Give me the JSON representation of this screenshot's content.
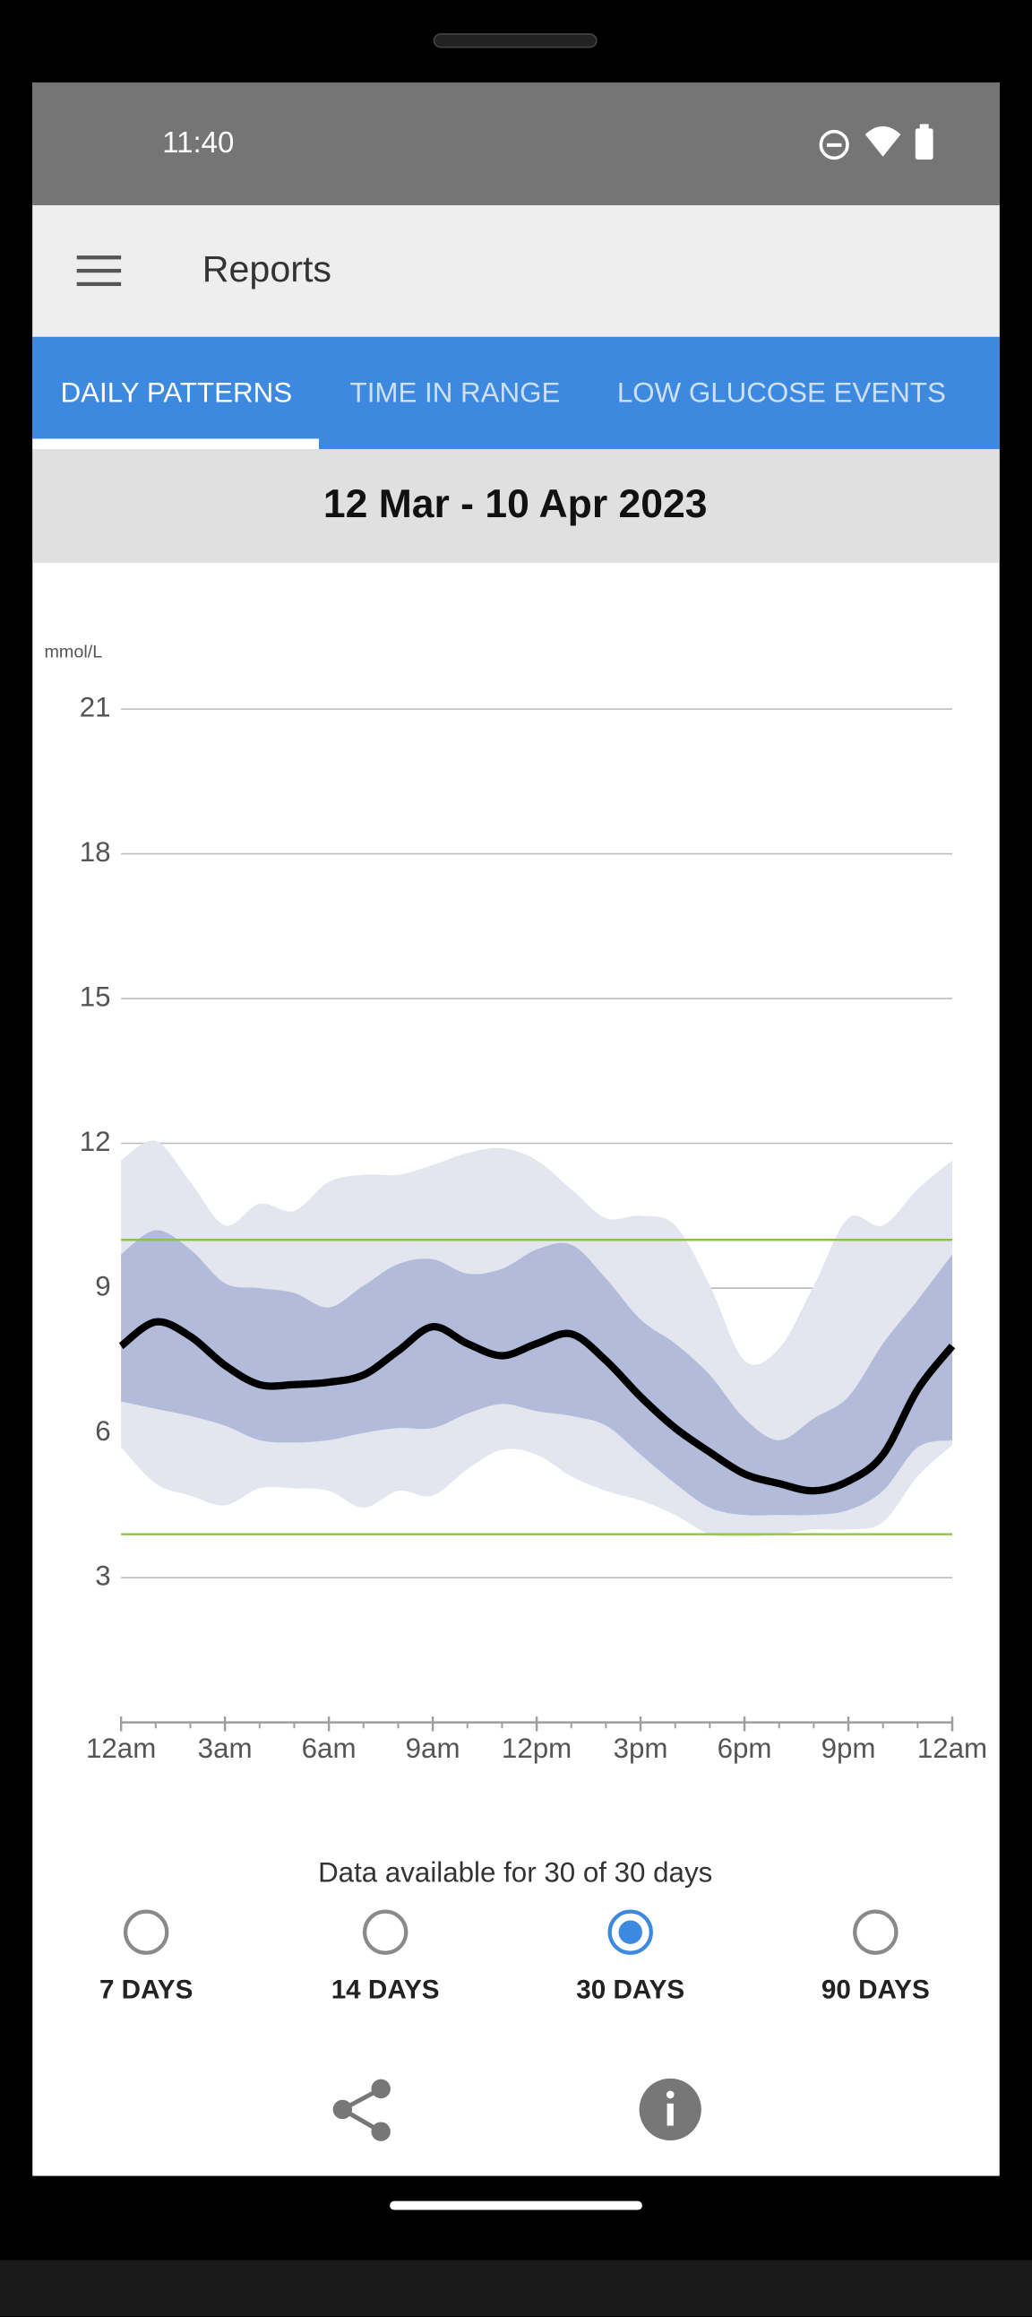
{
  "status_bar": {
    "time": "11:40"
  },
  "app_bar": {
    "title": "Reports"
  },
  "tabs": [
    {
      "label": "DAILY PATTERNS",
      "selected": true
    },
    {
      "label": "TIME IN RANGE",
      "selected": false
    },
    {
      "label": "LOW GLUCOSE EVENTS",
      "selected": false
    }
  ],
  "date_range": "12 Mar - 10 Apr 2023",
  "chart_data": {
    "type": "line",
    "y_label": "mmol/L",
    "x": [
      0,
      1,
      2,
      3,
      4,
      5,
      6,
      7,
      8,
      9,
      10,
      11,
      12,
      13,
      14,
      15,
      16,
      17,
      18,
      19,
      20,
      21,
      22,
      23,
      24
    ],
    "xlim": [
      0,
      24
    ],
    "xticks": [
      {
        "value": 0,
        "label": "12am"
      },
      {
        "value": 3,
        "label": "3am"
      },
      {
        "value": 6,
        "label": "6am"
      },
      {
        "value": 9,
        "label": "9am"
      },
      {
        "value": 12,
        "label": "12pm"
      },
      {
        "value": 15,
        "label": "3pm"
      },
      {
        "value": 18,
        "label": "6pm"
      },
      {
        "value": 21,
        "label": "9pm"
      },
      {
        "value": 24,
        "label": "12am"
      }
    ],
    "ylim": [
      0,
      21
    ],
    "yticks": [
      3,
      6,
      9,
      12,
      15,
      18,
      21
    ],
    "grid": true,
    "bands": [
      {
        "color": "#e3e6ef",
        "upper": [
          11.65,
          12.05,
          11.2,
          10.3,
          10.75,
          10.6,
          11.2,
          11.35,
          11.35,
          11.55,
          11.8,
          11.9,
          11.65,
          11.05,
          10.45,
          10.5,
          10.3,
          9.05,
          7.5,
          7.75,
          9.05,
          10.45,
          10.3,
          11.05,
          11.65
        ],
        "lower": [
          5.7,
          4.95,
          4.7,
          4.5,
          4.85,
          4.85,
          4.8,
          4.45,
          4.8,
          4.7,
          5.25,
          5.65,
          5.55,
          5.1,
          4.8,
          4.6,
          4.3,
          3.9,
          3.85,
          3.9,
          4.0,
          4.0,
          4.15,
          5.1,
          5.75
        ]
      },
      {
        "color": "#b2bcda",
        "upper": [
          9.7,
          10.2,
          9.8,
          9.1,
          9.0,
          8.9,
          8.6,
          9.05,
          9.5,
          9.6,
          9.3,
          9.4,
          9.8,
          9.9,
          9.2,
          8.35,
          7.85,
          7.2,
          6.3,
          5.85,
          6.3,
          6.75,
          7.85,
          8.75,
          9.7
        ],
        "lower": [
          6.65,
          6.5,
          6.35,
          6.15,
          5.85,
          5.8,
          5.85,
          6.0,
          6.1,
          6.1,
          6.4,
          6.6,
          6.45,
          6.35,
          6.15,
          5.55,
          4.95,
          4.45,
          4.3,
          4.3,
          4.3,
          4.4,
          4.8,
          5.7,
          5.85
        ]
      }
    ],
    "median": {
      "color": "#000000",
      "values": [
        7.8,
        8.3,
        8.0,
        7.4,
        7.0,
        7.0,
        7.05,
        7.2,
        7.7,
        8.2,
        7.85,
        7.6,
        7.85,
        8.05,
        7.5,
        6.75,
        6.1,
        5.6,
        5.15,
        4.95,
        4.8,
        5.0,
        5.55,
        6.9,
        7.8
      ]
    },
    "target_range": [
      3.9,
      10.0
    ],
    "target_color": "#8bc34a"
  },
  "footer": "Data available for 30 of 30 days",
  "options": [
    {
      "label": "7 DAYS",
      "selected": false
    },
    {
      "label": "14 DAYS",
      "selected": false
    },
    {
      "label": "30 DAYS",
      "selected": true
    },
    {
      "label": "90 DAYS",
      "selected": false
    }
  ]
}
